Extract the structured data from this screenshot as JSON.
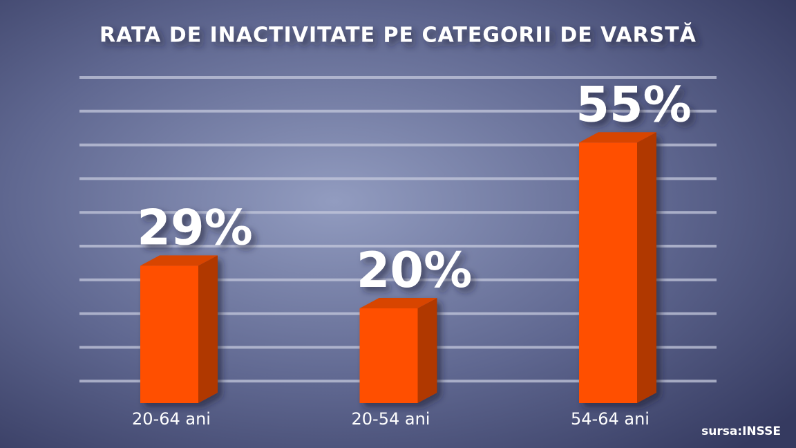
{
  "chart_data": {
    "type": "bar3d",
    "title": "RATA DE INACTIVITATE PE CATEGORII DE VARSTĂ",
    "categories": [
      "20-64 ani",
      "20-54 ani",
      "54-64 ani"
    ],
    "values": [
      29,
      20,
      55
    ],
    "value_labels": [
      "29%",
      "20%",
      "55%"
    ],
    "color": "#ff5000",
    "ylim": [
      0,
      60
    ],
    "source": "sursa:INSSE"
  }
}
